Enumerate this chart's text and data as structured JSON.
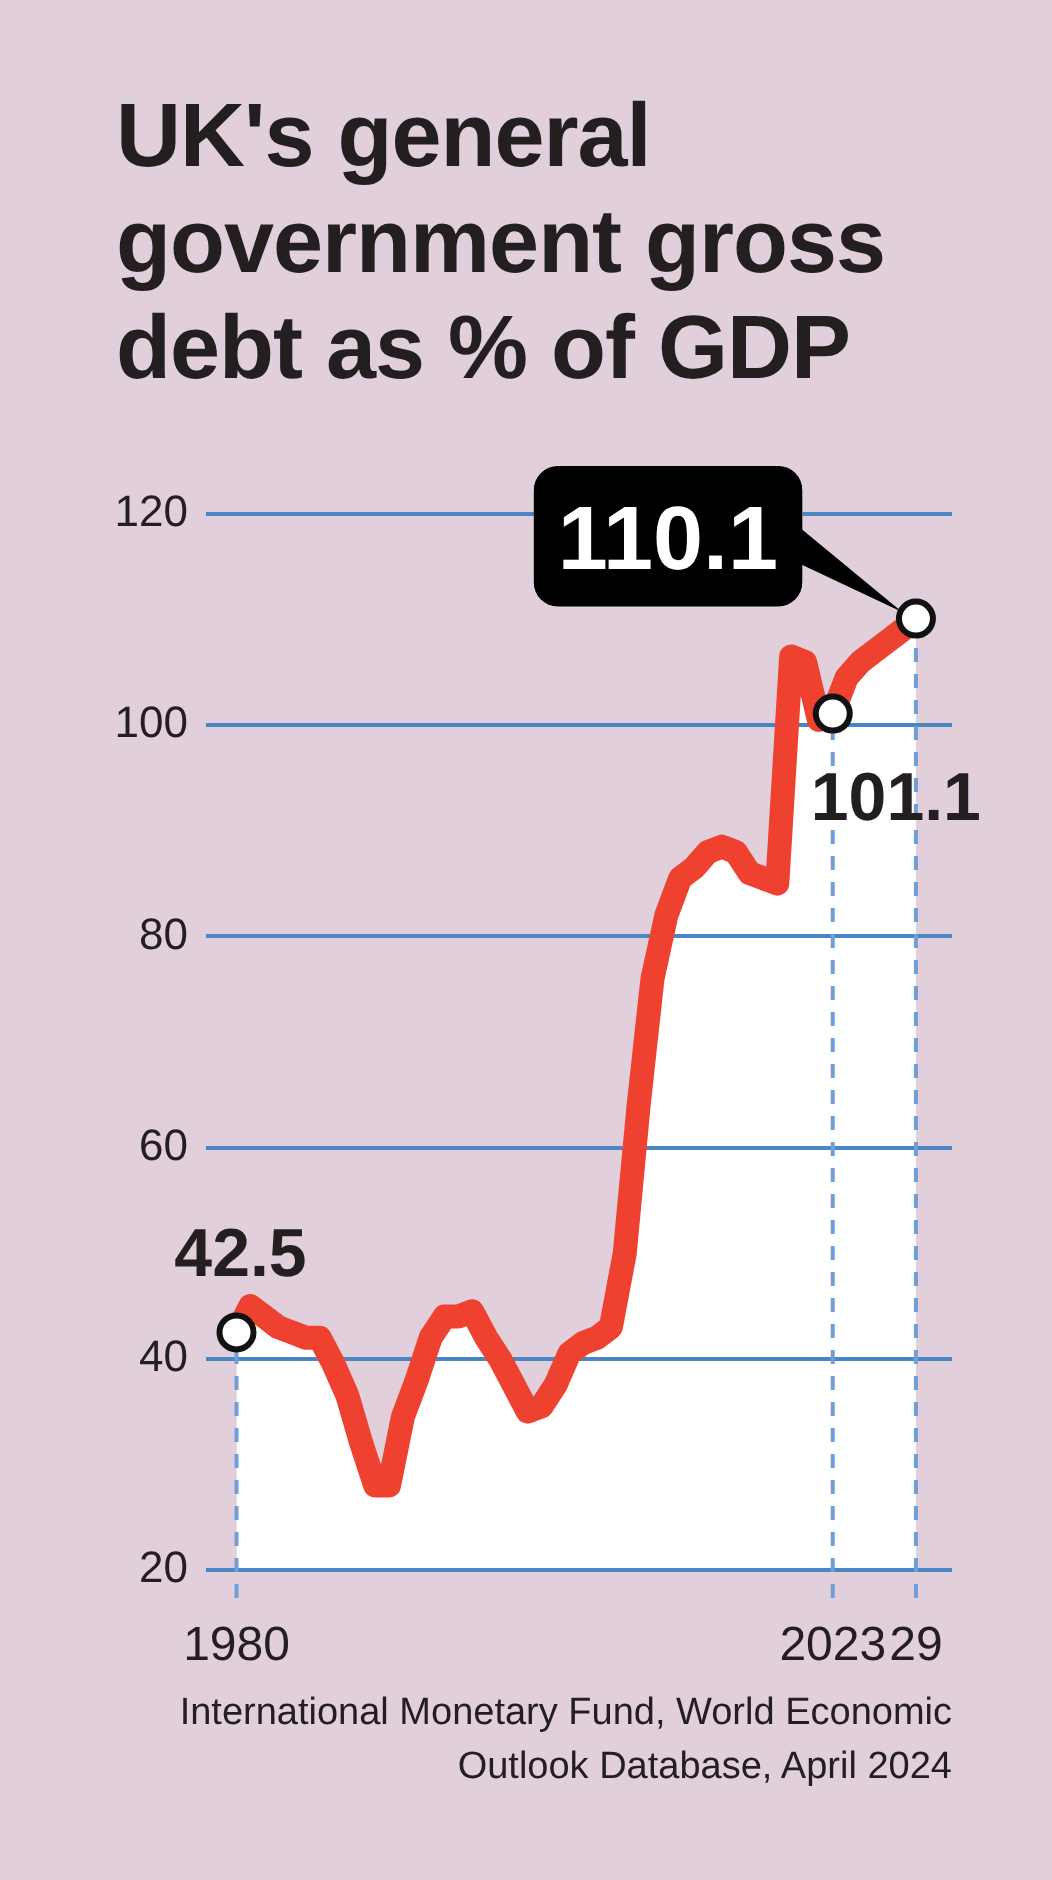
{
  "chart_data": {
    "type": "area",
    "title": "UK's general government gross debt as % of GDP",
    "annotations": [
      "International Monetary Fund, World Economic Outlook Database, April 2024"
    ],
    "x": [
      1980,
      1981,
      1982,
      1983,
      1984,
      1985,
      1986,
      1987,
      1988,
      1989,
      1990,
      1991,
      1992,
      1993,
      1994,
      1995,
      1996,
      1997,
      1998,
      1999,
      2000,
      2001,
      2002,
      2003,
      2004,
      2005,
      2006,
      2007,
      2008,
      2009,
      2010,
      2011,
      2012,
      2013,
      2014,
      2015,
      2016,
      2017,
      2018,
      2019,
      2020,
      2021,
      2022,
      2023,
      2024,
      2025,
      2026,
      2027,
      2028,
      2029
    ],
    "series": [
      {
        "color": "#ee4130",
        "values": [
          42.5,
          45,
          44,
          43,
          42.5,
          42,
          42,
          39.5,
          36.5,
          32,
          28,
          28,
          34.5,
          38,
          42,
          44,
          44,
          44.5,
          42,
          40,
          37.5,
          35,
          35.5,
          37.5,
          40.5,
          41.5,
          42,
          43,
          50,
          64,
          76,
          82,
          85.5,
          86.5,
          88,
          88.5,
          88,
          86,
          85.5,
          85,
          106.5,
          106,
          100.5,
          101.1,
          104.5,
          106,
          107,
          108,
          109,
          110.1
        ]
      },
      {
        "type": "scatter",
        "color": "#ffffff",
        "marker": "circle",
        "x": [
          1980,
          2023,
          2029
        ],
        "values": [
          42.5,
          101.1,
          110.1
        ],
        "value_labels": [
          "42.5",
          "101.1",
          "110.1"
        ]
      }
    ],
    "xlim": [
      1977.8,
      2031.6
    ],
    "xticks": [
      1980,
      2023,
      {
        "value": 2029,
        "label": "29"
      }
    ],
    "ylim": [
      20,
      120
    ],
    "yticks": [
      20,
      40,
      60,
      80,
      100,
      120
    ],
    "grid": true,
    "marker": "none"
  }
}
